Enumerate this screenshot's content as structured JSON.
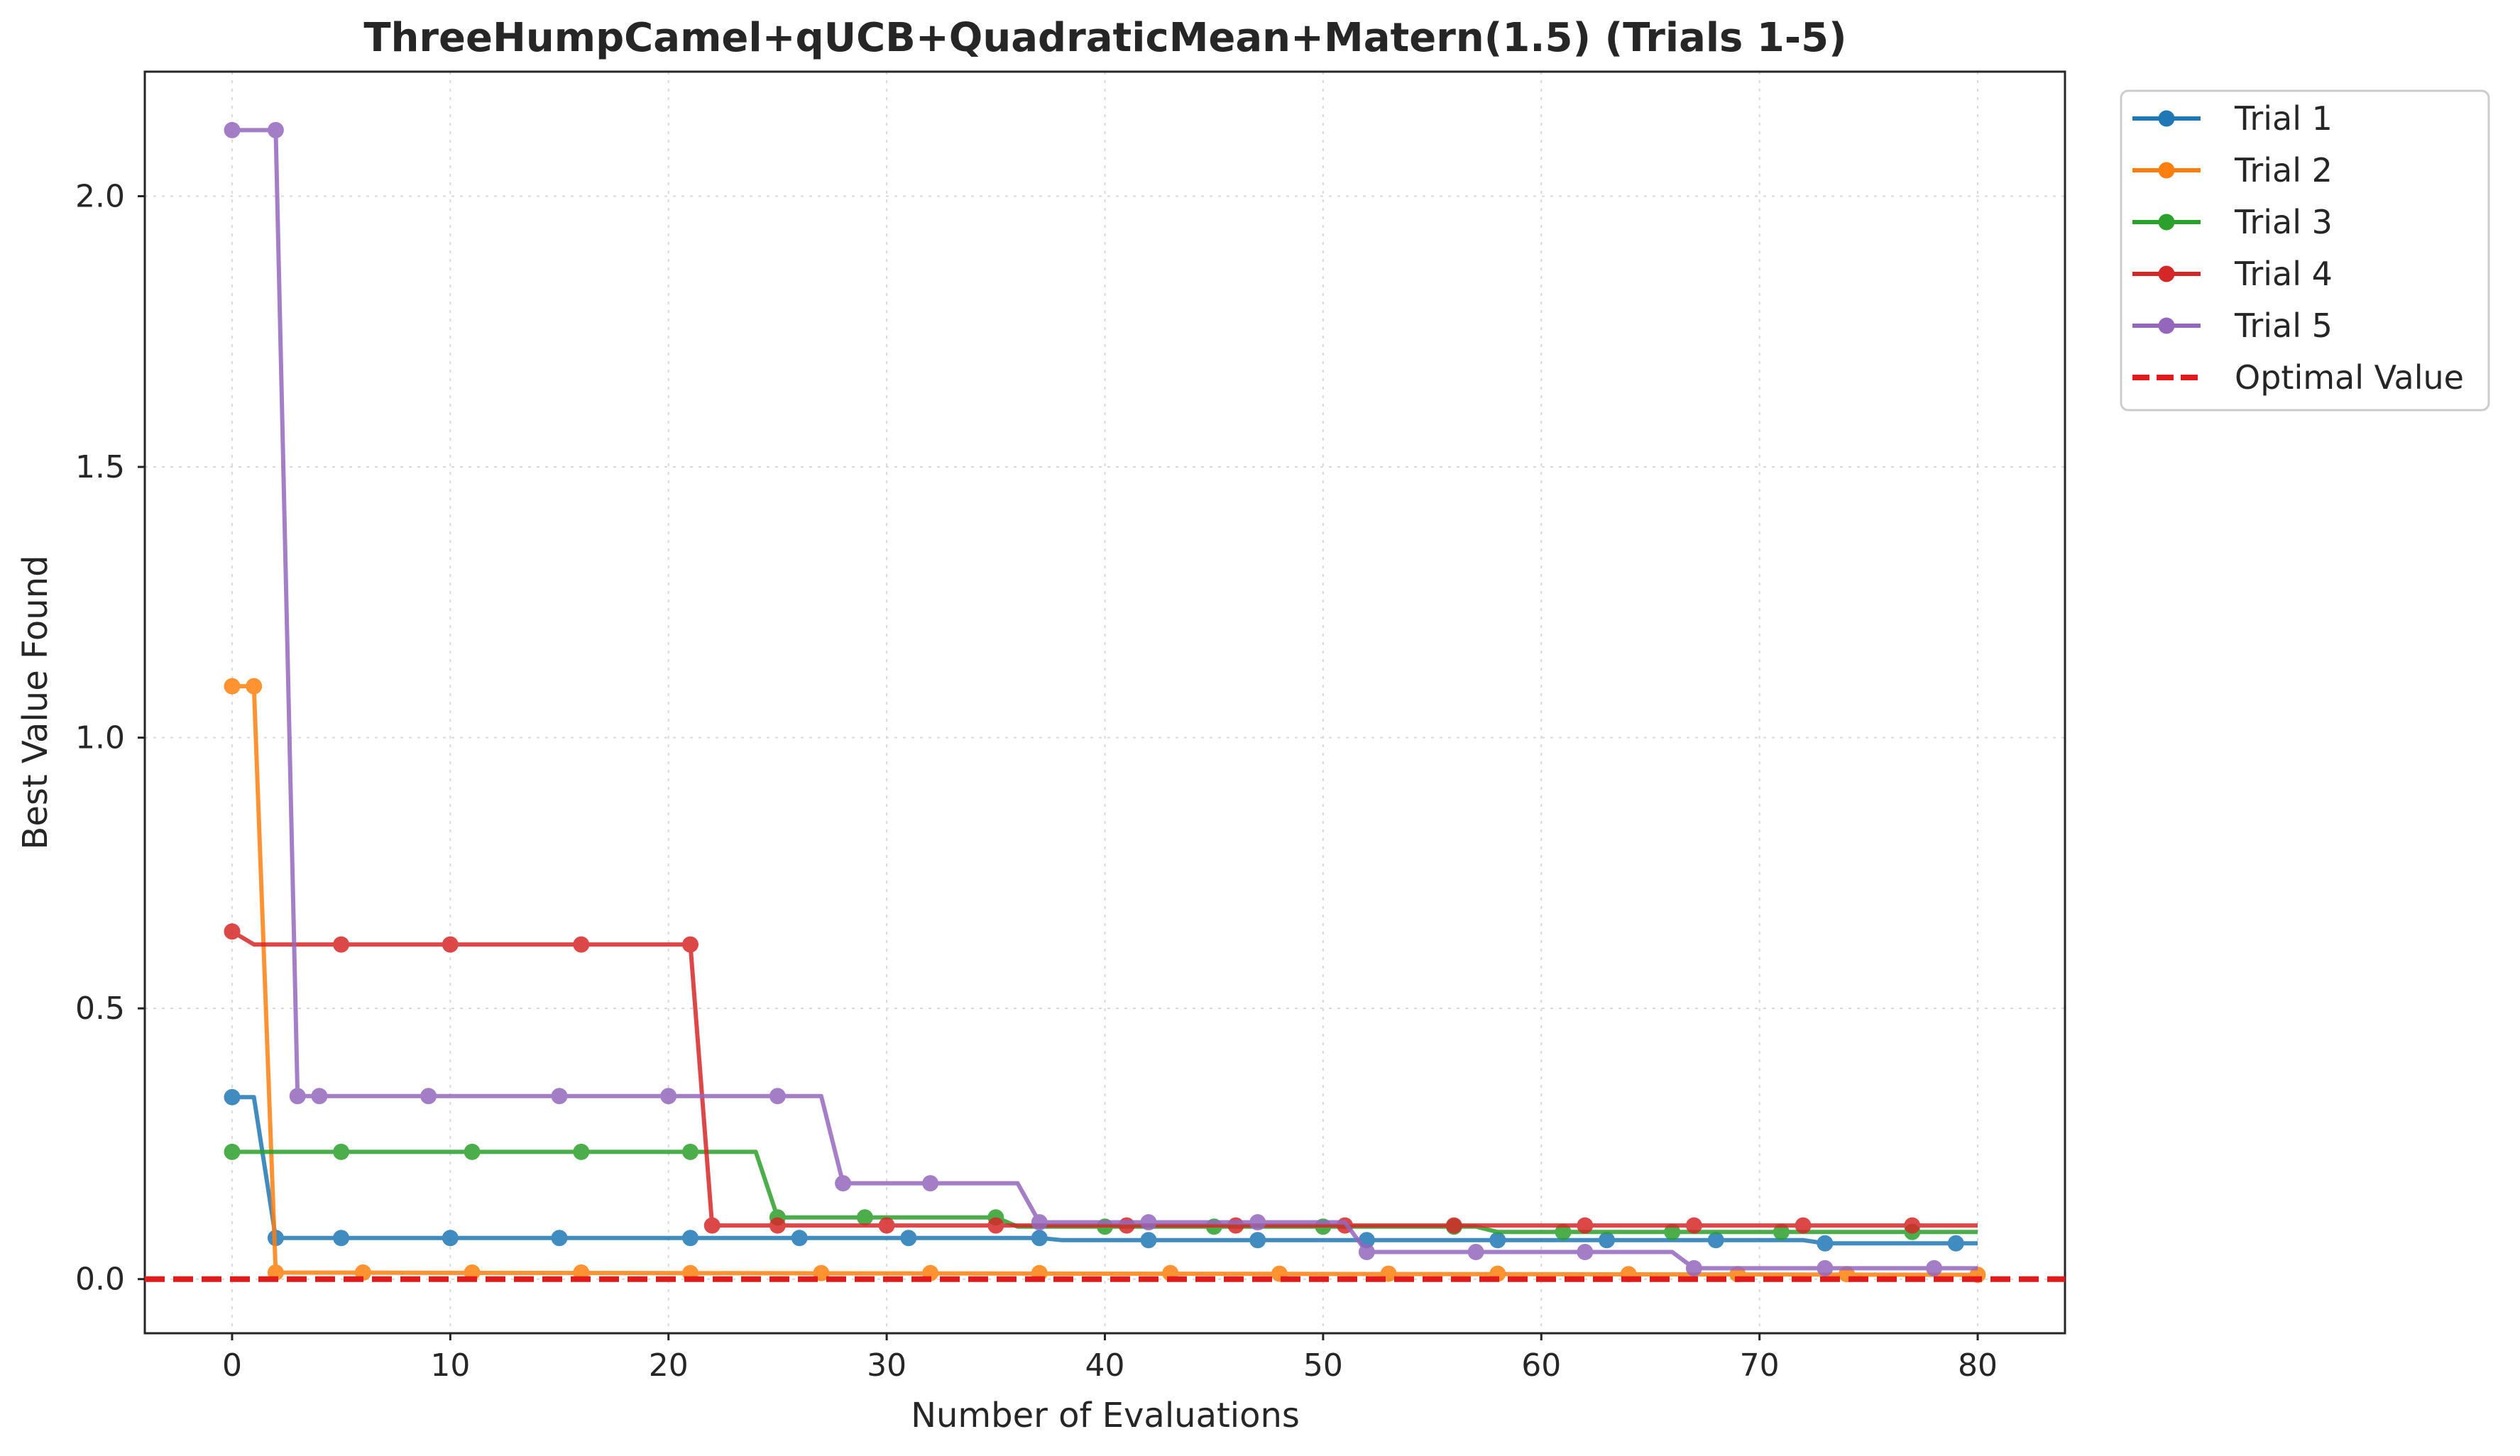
{
  "chart_data": {
    "type": "line",
    "title": "ThreeHumpCamel+qUCB+QuadraticMean+Matern(1.5) (Trials 1-5)",
    "xlabel": "Number of Evaluations",
    "ylabel": "Best Value Found",
    "xlim": [
      -4,
      84
    ],
    "ylim": [
      -0.1,
      2.23
    ],
    "x_ticks": [
      0,
      10,
      20,
      30,
      40,
      50,
      60,
      70,
      80
    ],
    "x_tick_labels": [
      "0",
      "10",
      "20",
      "30",
      "40",
      "50",
      "60",
      "70",
      "80"
    ],
    "y_ticks": [
      0.0,
      0.5,
      1.0,
      1.5,
      2.0
    ],
    "y_tick_labels": [
      "0.0",
      "0.5",
      "1.0",
      "1.5",
      "2.0"
    ],
    "grid": true,
    "legend_position": "outside-top-right",
    "series": [
      {
        "name": "Trial 1",
        "color": "#1f77b4",
        "line": [
          [
            0,
            0.336
          ],
          [
            1,
            0.336
          ],
          [
            2,
            0.076
          ],
          [
            37,
            0.076
          ],
          [
            38,
            0.072
          ],
          [
            57,
            0.072
          ],
          [
            58,
            0.072
          ],
          [
            72,
            0.072
          ],
          [
            73,
            0.066
          ],
          [
            80,
            0.066
          ]
        ],
        "markers": [
          [
            0,
            0.336
          ],
          [
            2,
            0.076
          ],
          [
            5,
            0.076
          ],
          [
            10,
            0.076
          ],
          [
            15,
            0.076
          ],
          [
            21,
            0.076
          ],
          [
            26,
            0.076
          ],
          [
            31,
            0.076
          ],
          [
            37,
            0.076
          ],
          [
            42,
            0.072
          ],
          [
            47,
            0.072
          ],
          [
            52,
            0.072
          ],
          [
            58,
            0.072
          ],
          [
            63,
            0.072
          ],
          [
            68,
            0.072
          ],
          [
            73,
            0.066
          ],
          [
            79,
            0.066
          ]
        ]
      },
      {
        "name": "Trial 2",
        "color": "#ff7f0e",
        "line": [
          [
            0,
            1.095
          ],
          [
            1,
            1.095
          ],
          [
            2,
            0.012
          ],
          [
            80,
            0.008
          ]
        ],
        "markers": [
          [
            0,
            1.095
          ],
          [
            1,
            1.095
          ],
          [
            2,
            0.012
          ],
          [
            6,
            0.012
          ],
          [
            11,
            0.012
          ],
          [
            16,
            0.012
          ],
          [
            21,
            0.011
          ],
          [
            27,
            0.011
          ],
          [
            32,
            0.011
          ],
          [
            37,
            0.011
          ],
          [
            43,
            0.011
          ],
          [
            48,
            0.01
          ],
          [
            53,
            0.01
          ],
          [
            58,
            0.01
          ],
          [
            64,
            0.009
          ],
          [
            69,
            0.009
          ],
          [
            74,
            0.009
          ],
          [
            80,
            0.008
          ]
        ]
      },
      {
        "name": "Trial 3",
        "color": "#2ca02c",
        "line": [
          [
            0,
            0.235
          ],
          [
            24,
            0.235
          ],
          [
            25,
            0.114
          ],
          [
            35,
            0.114
          ],
          [
            36,
            0.097
          ],
          [
            57,
            0.097
          ],
          [
            58,
            0.087
          ],
          [
            80,
            0.087
          ]
        ],
        "markers": [
          [
            0,
            0.235
          ],
          [
            5,
            0.235
          ],
          [
            11,
            0.235
          ],
          [
            16,
            0.235
          ],
          [
            21,
            0.235
          ],
          [
            25,
            0.114
          ],
          [
            29,
            0.114
          ],
          [
            35,
            0.114
          ],
          [
            40,
            0.097
          ],
          [
            45,
            0.097
          ],
          [
            50,
            0.097
          ],
          [
            56,
            0.097
          ],
          [
            61,
            0.087
          ],
          [
            66,
            0.087
          ],
          [
            71,
            0.087
          ],
          [
            77,
            0.087
          ]
        ]
      },
      {
        "name": "Trial 4",
        "color": "#d62728",
        "line": [
          [
            0,
            0.642
          ],
          [
            1,
            0.618
          ],
          [
            21,
            0.618
          ],
          [
            22,
            0.099
          ],
          [
            80,
            0.099
          ]
        ],
        "markers": [
          [
            0,
            0.642
          ],
          [
            5,
            0.618
          ],
          [
            10,
            0.618
          ],
          [
            16,
            0.618
          ],
          [
            21,
            0.618
          ],
          [
            22,
            0.099
          ],
          [
            25,
            0.099
          ],
          [
            30,
            0.099
          ],
          [
            35,
            0.099
          ],
          [
            41,
            0.099
          ],
          [
            46,
            0.099
          ],
          [
            51,
            0.099
          ],
          [
            56,
            0.099
          ],
          [
            62,
            0.099
          ],
          [
            67,
            0.099
          ],
          [
            72,
            0.099
          ],
          [
            77,
            0.099
          ]
        ]
      },
      {
        "name": "Trial 5",
        "color": "#9467bd",
        "line": [
          [
            0,
            2.122
          ],
          [
            2,
            2.122
          ],
          [
            3,
            0.338
          ],
          [
            27,
            0.338
          ],
          [
            28,
            0.177
          ],
          [
            36,
            0.177
          ],
          [
            37,
            0.105
          ],
          [
            51,
            0.105
          ],
          [
            52,
            0.05
          ],
          [
            66,
            0.05
          ],
          [
            67,
            0.02
          ],
          [
            80,
            0.02
          ]
        ],
        "markers": [
          [
            0,
            2.122
          ],
          [
            2,
            2.122
          ],
          [
            3,
            0.338
          ],
          [
            4,
            0.338
          ],
          [
            9,
            0.338
          ],
          [
            15,
            0.338
          ],
          [
            20,
            0.338
          ],
          [
            25,
            0.338
          ],
          [
            28,
            0.177
          ],
          [
            32,
            0.177
          ],
          [
            37,
            0.105
          ],
          [
            42,
            0.105
          ],
          [
            47,
            0.105
          ],
          [
            52,
            0.05
          ],
          [
            57,
            0.05
          ],
          [
            62,
            0.05
          ],
          [
            67,
            0.02
          ],
          [
            73,
            0.02
          ],
          [
            78,
            0.02
          ]
        ]
      }
    ],
    "reference_lines": [
      {
        "name": "Optimal Value",
        "y": 0.0,
        "color": "#e31a1c",
        "style": "dashed"
      }
    ]
  }
}
